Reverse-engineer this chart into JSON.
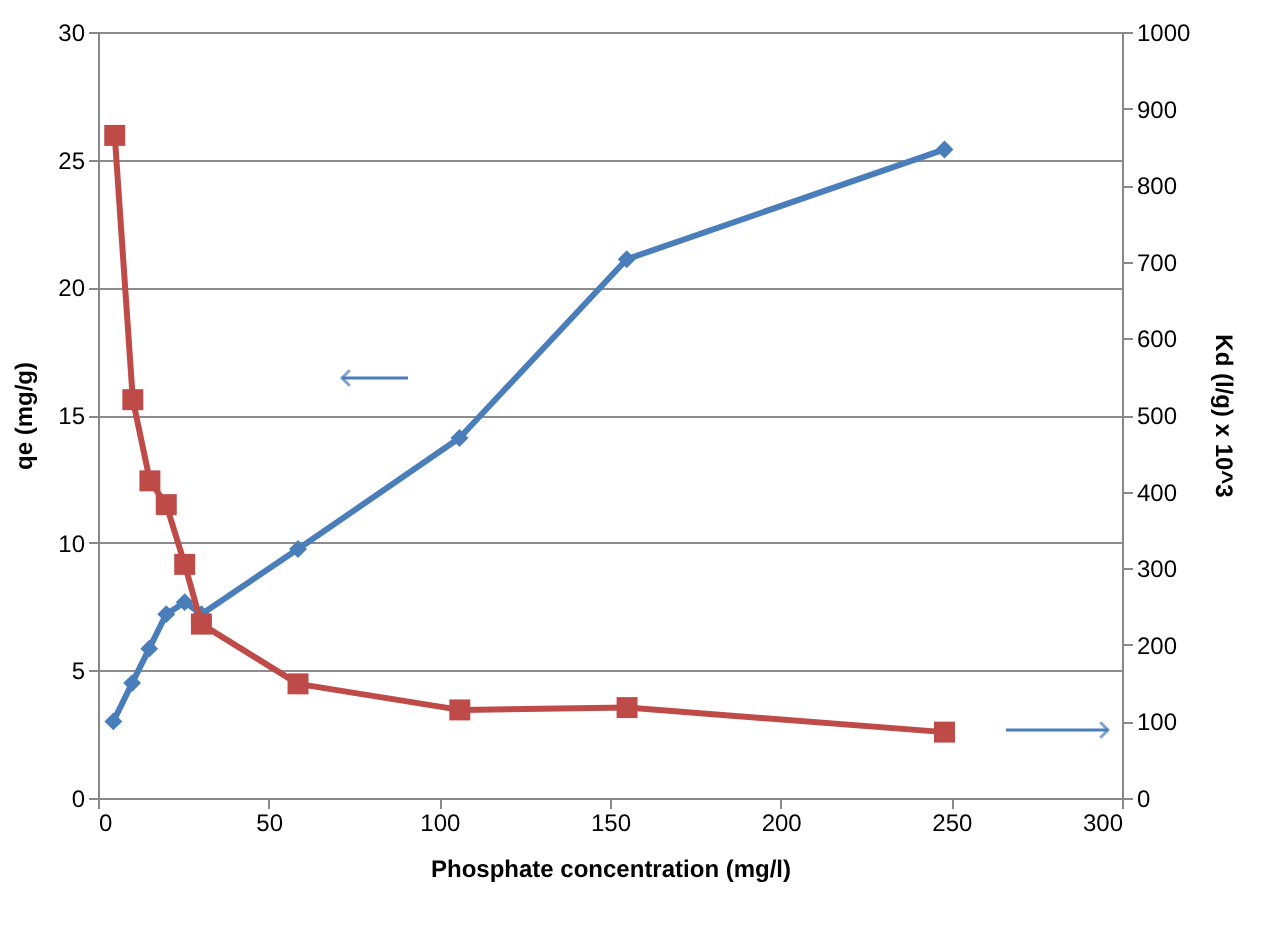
{
  "chart_data": {
    "type": "line",
    "xlabel": "Phosphate concentration (mg/l)",
    "ylabel": "qe (mg/g)",
    "y2label": "Kd (l/g) x 10^3",
    "xlim": [
      0,
      300
    ],
    "xticks": [
      0,
      50,
      100,
      150,
      200,
      250,
      300
    ],
    "ylim": [
      0,
      30
    ],
    "yticks": [
      0,
      5,
      10,
      15,
      20,
      25,
      30
    ],
    "y2lim": [
      0,
      1000
    ],
    "y2ticks": [
      0,
      100,
      200,
      300,
      400,
      500,
      600,
      700,
      800,
      900,
      1000
    ],
    "grid": "y",
    "line_style": "solid",
    "series": [
      {
        "color": "#4a7ebb",
        "marker": "diamond",
        "x": [
          4.5,
          10,
          15,
          20,
          25.4,
          30.3,
          58.6,
          105.9,
          154.9,
          248
        ],
        "values": [
          3.0,
          4.5,
          5.85,
          7.2,
          7.67,
          7.2,
          9.75,
          14.1,
          21.1,
          25.4
        ]
      },
      {
        "color": "#be4b48",
        "marker": "square",
        "axis": "y2",
        "x": [
          4.9,
          10.2,
          15.2,
          20,
          25.4,
          30.3,
          58.6,
          106,
          155,
          248
        ],
        "values": [
          865,
          520,
          414,
          383,
          305,
          227,
          149,
          115,
          118,
          86
        ]
      }
    ]
  }
}
